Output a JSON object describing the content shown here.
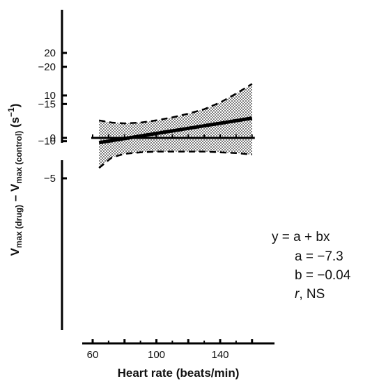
{
  "chart_data": {
    "type": "line",
    "xlabel": "Heart rate (beats/min)",
    "ylabel": {
      "v1": "V",
      "sub1": "max (drug)",
      "mid": " – V",
      "sub2": "max (control)",
      "unit_open": " (s",
      "sup": "−1",
      "unit_close": ")"
    },
    "x_ticks": [
      60,
      100,
      140
    ],
    "y_ticks_upper": [
      20,
      10,
      0
    ],
    "y_ticks_lower": [
      -5,
      -10,
      -15,
      -20
    ],
    "x_range": [
      56,
      164
    ],
    "control_series": {
      "x": [
        60,
        160
      ],
      "y": [
        0,
        0
      ]
    },
    "regression": {
      "x": [
        64,
        160
      ],
      "y": [
        -9.8,
        -13.1
      ]
    },
    "confidence_upper": {
      "x": [
        64,
        72,
        80,
        90,
        100,
        110,
        120,
        130,
        140,
        150,
        160
      ],
      "y": [
        -6.4,
        -7.8,
        -8.3,
        -8.5,
        -8.6,
        -8.6,
        -8.6,
        -8.6,
        -8.5,
        -8.4,
        -8.2
      ]
    },
    "confidence_lower": {
      "x": [
        64,
        72,
        80,
        90,
        100,
        110,
        120,
        130,
        140,
        150,
        160
      ],
      "y": [
        -12.8,
        -12.5,
        -12.4,
        -12.5,
        -12.8,
        -13.2,
        -13.7,
        -14.3,
        -15.2,
        -16.4,
        -17.7
      ]
    },
    "equation": {
      "line1": "y = a + bx",
      "line2": "a = −7.3",
      "line3": "b = −0.04",
      "line4_italic": "r",
      "line4_rest": ", NS"
    }
  }
}
